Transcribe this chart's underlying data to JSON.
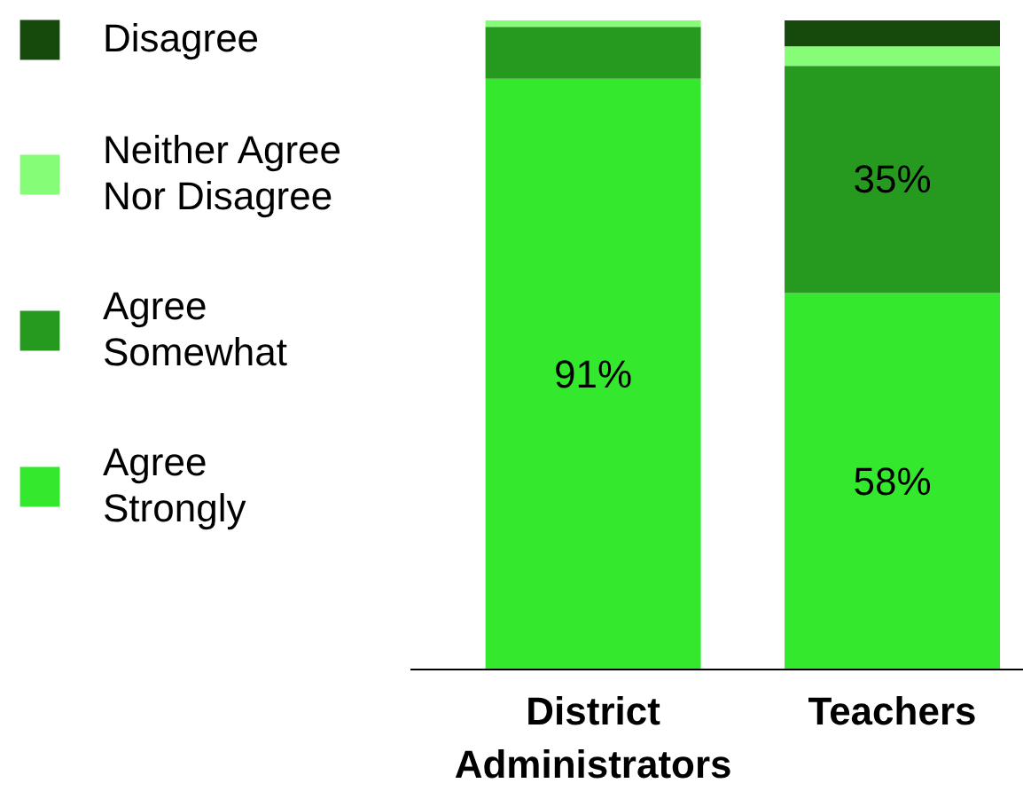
{
  "chart_data": {
    "type": "bar",
    "stacked": true,
    "categories": [
      "District Administrators",
      "Teachers"
    ],
    "series": [
      {
        "name": "Agree Strongly",
        "color": "#33e82d",
        "values": [
          91,
          58
        ],
        "value_labels": [
          "91%",
          "58%"
        ]
      },
      {
        "name": "Agree Somewhat",
        "color": "#26991f",
        "values": [
          8,
          35
        ],
        "value_labels": [
          null,
          "35%"
        ]
      },
      {
        "name": "Neither Agree Nor Disagree",
        "color": "#86fd77",
        "values": [
          1,
          3
        ],
        "value_labels": [
          null,
          null
        ]
      },
      {
        "name": "Disagree",
        "color": "#164a0c",
        "values": [
          0,
          4
        ],
        "value_labels": [
          null,
          null
        ]
      }
    ],
    "legend": "left",
    "grid": false
  }
}
